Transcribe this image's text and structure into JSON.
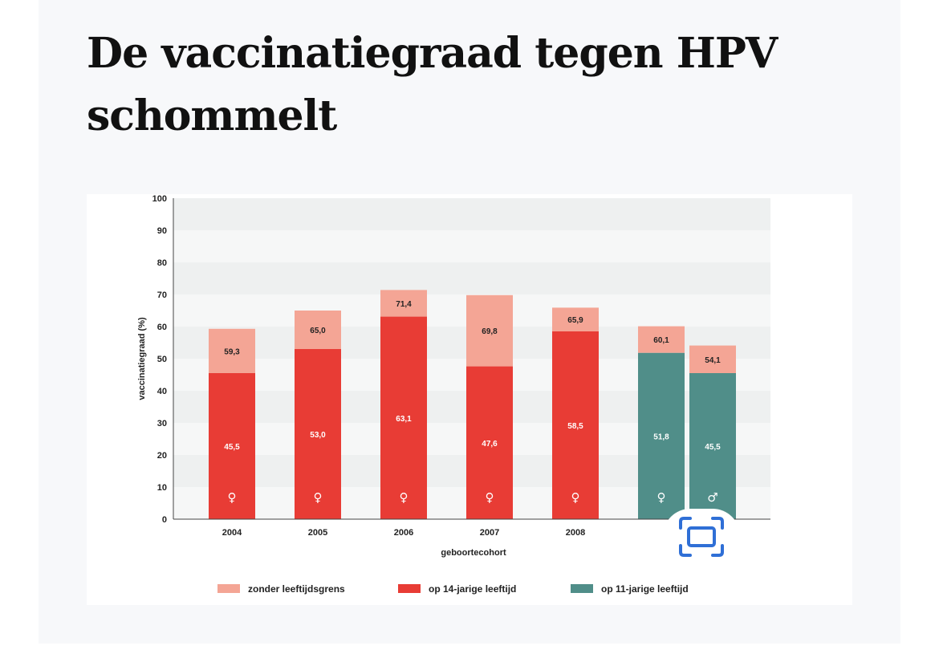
{
  "page": {
    "title": "De vaccinatiegraad tegen HPV schommelt"
  },
  "icons": {
    "scan_button": "scan-frame-icon",
    "accent": "#2f6fd6"
  },
  "chart_data": {
    "type": "bar",
    "stacked": true,
    "title": "",
    "ylabel": "vaccinatiegraad (%)",
    "xlabel": "geboortecohort",
    "ylim": [
      0,
      100
    ],
    "yticks": [
      0,
      10,
      20,
      30,
      40,
      50,
      60,
      70,
      80,
      90,
      100
    ],
    "grid": "alternating horizontal bands",
    "legend_position": "bottom",
    "colors": {
      "zonder": "#f4a595",
      "op14": "#e83c35",
      "op11": "#508e89",
      "band": "#eef0f0"
    },
    "legend": [
      {
        "label": "zonder leeftijdsgrens",
        "color": "#f4a595"
      },
      {
        "label": "op 14-jarige leeftijd",
        "color": "#e83c35"
      },
      {
        "label": "op 11-jarige leeftijd",
        "color": "#508e89"
      }
    ],
    "bars": [
      {
        "category": "2004",
        "base": 45.5,
        "base_label": "45,5",
        "total": 59.3,
        "total_label": "59,3",
        "base_series": "op14",
        "sex": "♀"
      },
      {
        "category": "2005",
        "base": 53.0,
        "base_label": "53,0",
        "total": 65.0,
        "total_label": "65,0",
        "base_series": "op14",
        "sex": "♀"
      },
      {
        "category": "2006",
        "base": 63.1,
        "base_label": "63,1",
        "total": 71.4,
        "total_label": "71,4",
        "base_series": "op14",
        "sex": "♀"
      },
      {
        "category": "2007",
        "base": 47.6,
        "base_label": "47,6",
        "total": 69.8,
        "total_label": "69,8",
        "base_series": "op14",
        "sex": "♀"
      },
      {
        "category": "2008",
        "base": 58.5,
        "base_label": "58,5",
        "total": 65.9,
        "total_label": "65,9",
        "base_series": "op14",
        "sex": "♀"
      },
      {
        "category": "",
        "base": 51.8,
        "base_label": "51,8",
        "total": 60.1,
        "total_label": "60,1",
        "base_series": "op11",
        "sex": "♀"
      },
      {
        "category": "",
        "base": 45.5,
        "base_label": "45,5",
        "total": 54.1,
        "total_label": "54,1",
        "base_series": "op11",
        "sex": "♂"
      }
    ]
  }
}
